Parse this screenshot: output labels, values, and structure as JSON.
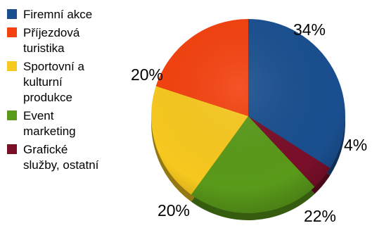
{
  "chart_data": {
    "type": "pie",
    "title": "",
    "categories": [
      "Firemní akce",
      "Příjezdová turistika",
      "Sportovní a kulturní produkce",
      "Event marketing",
      "Grafické služby, ostatní"
    ],
    "values": [
      34,
      20,
      20,
      22,
      4
    ],
    "value_labels": [
      "34%",
      "20%",
      "20%",
      "22%",
      "4%"
    ],
    "colors": [
      "#1a4f8f",
      "#f4410f",
      "#f7c81f",
      "#5a9a1a",
      "#7a0f2a"
    ],
    "legend_position": "left",
    "style": "3d"
  }
}
